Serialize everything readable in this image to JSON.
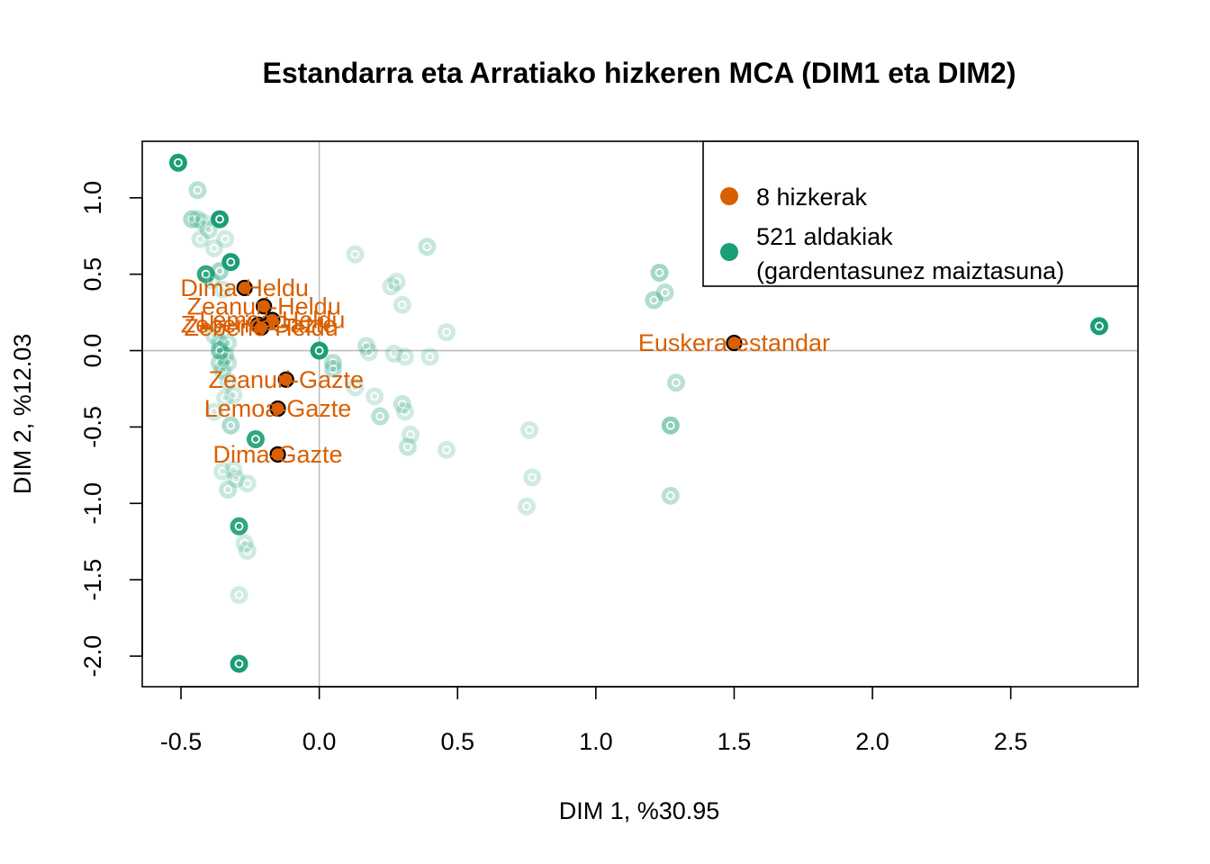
{
  "chart_data": {
    "type": "scatter",
    "title": "Estandarra eta Arratiako hizkeren MCA (DIM1 eta DIM2)",
    "xlabel": "DIM 1, %30.95",
    "ylabel": "DIM 2, %12.03",
    "xlim": [
      -0.64,
      2.96
    ],
    "ylim": [
      -2.2,
      1.37
    ],
    "xticks": [
      -0.5,
      0.0,
      0.5,
      1.0,
      1.5,
      2.0,
      2.5
    ],
    "xtick_labels": [
      "-0.5",
      "0.0",
      "0.5",
      "1.0",
      "1.5",
      "2.0",
      "2.5"
    ],
    "yticks": [
      -2.0,
      -1.5,
      -1.0,
      -0.5,
      0.0,
      0.5,
      1.0
    ],
    "ytick_labels": [
      "-2.0",
      "-1.5",
      "-1.0",
      "-0.5",
      "0.0",
      "0.5",
      "1.0"
    ],
    "reference_lines": {
      "x": 0,
      "y": 0
    },
    "grid": false,
    "legend": {
      "position": "top-right",
      "entries": [
        {
          "label": "8 hizkerak",
          "color": "#D95F02"
        },
        {
          "label": "521 aldakiak",
          "sublabel": "(gardentasunez maiztasuna)",
          "color": "#1B9E77"
        }
      ]
    },
    "series": [
      {
        "name": "8 hizkerak",
        "color": "#D95F02",
        "points": [
          {
            "label": "Dima-Heldu",
            "x": -0.27,
            "y": 0.41
          },
          {
            "label": "Zeanuri-Heldu",
            "x": -0.2,
            "y": 0.29
          },
          {
            "label": "Lemoa-Heldu",
            "x": -0.17,
            "y": 0.2
          },
          {
            "label": "Zeberio-Gazte",
            "x": -0.22,
            "y": 0.17
          },
          {
            "label": "Zeberio-Heldu",
            "x": -0.21,
            "y": 0.15
          },
          {
            "label": "Euskera-estandar",
            "x": 1.5,
            "y": 0.05
          },
          {
            "label": "Zeanuri-Gazte",
            "x": -0.12,
            "y": -0.19
          },
          {
            "label": "Lemoa-Gazte",
            "x": -0.15,
            "y": -0.38
          },
          {
            "label": "Dima-Gazte",
            "x": -0.15,
            "y": -0.68
          }
        ]
      },
      {
        "name": "521 aldakiak",
        "color": "#1B9E77",
        "points": [
          {
            "x": -0.51,
            "y": 1.23,
            "alpha": 1.0
          },
          {
            "x": -0.44,
            "y": 1.05,
            "alpha": 0.3
          },
          {
            "x": -0.46,
            "y": 0.86,
            "alpha": 0.35
          },
          {
            "x": -0.44,
            "y": 0.86,
            "alpha": 0.25
          },
          {
            "x": -0.42,
            "y": 0.84,
            "alpha": 0.2
          },
          {
            "x": -0.36,
            "y": 0.86,
            "alpha": 1.0
          },
          {
            "x": -0.4,
            "y": 0.79,
            "alpha": 0.25
          },
          {
            "x": -0.43,
            "y": 0.73,
            "alpha": 0.2
          },
          {
            "x": -0.34,
            "y": 0.73,
            "alpha": 0.2
          },
          {
            "x": -0.38,
            "y": 0.67,
            "alpha": 0.2
          },
          {
            "x": -0.32,
            "y": 0.58,
            "alpha": 1.0
          },
          {
            "x": -0.41,
            "y": 0.5,
            "alpha": 0.9
          },
          {
            "x": -0.36,
            "y": 0.52,
            "alpha": 0.4
          },
          {
            "x": -0.39,
            "y": 0.46,
            "alpha": 0.2
          },
          {
            "x": -0.35,
            "y": 0.4,
            "alpha": 0.2
          },
          {
            "x": -0.38,
            "y": 0.1,
            "alpha": 0.25
          },
          {
            "x": -0.36,
            "y": 0.05,
            "alpha": 0.3
          },
          {
            "x": -0.33,
            "y": 0.05,
            "alpha": 0.25
          },
          {
            "x": -0.36,
            "y": 0.0,
            "alpha": 0.5
          },
          {
            "x": -0.34,
            "y": -0.03,
            "alpha": 0.3
          },
          {
            "x": -0.36,
            "y": -0.08,
            "alpha": 0.3
          },
          {
            "x": -0.33,
            "y": -0.08,
            "alpha": 0.25
          },
          {
            "x": -0.35,
            "y": -0.13,
            "alpha": 0.25
          },
          {
            "x": -0.33,
            "y": -0.2,
            "alpha": 0.2
          },
          {
            "x": -0.34,
            "y": -0.31,
            "alpha": 0.2
          },
          {
            "x": -0.31,
            "y": -0.29,
            "alpha": 0.2
          },
          {
            "x": -0.38,
            "y": -0.4,
            "alpha": 0.2
          },
          {
            "x": -0.32,
            "y": -0.49,
            "alpha": 0.35
          },
          {
            "x": -0.23,
            "y": -0.58,
            "alpha": 0.9
          },
          {
            "x": -0.35,
            "y": -0.79,
            "alpha": 0.2
          },
          {
            "x": -0.31,
            "y": -0.78,
            "alpha": 0.2
          },
          {
            "x": -0.3,
            "y": -0.84,
            "alpha": 0.2
          },
          {
            "x": -0.26,
            "y": -0.87,
            "alpha": 0.2
          },
          {
            "x": -0.33,
            "y": -0.91,
            "alpha": 0.25
          },
          {
            "x": -0.29,
            "y": -1.15,
            "alpha": 0.9
          },
          {
            "x": -0.27,
            "y": -1.26,
            "alpha": 0.2
          },
          {
            "x": -0.26,
            "y": -1.31,
            "alpha": 0.2
          },
          {
            "x": -0.29,
            "y": -1.6,
            "alpha": 0.2
          },
          {
            "x": -0.29,
            "y": -2.05,
            "alpha": 1.0
          },
          {
            "x": 0.0,
            "y": 0.0,
            "alpha": 1.0
          },
          {
            "x": 0.05,
            "y": -0.08,
            "alpha": 0.3
          },
          {
            "x": 0.05,
            "y": -0.12,
            "alpha": 0.3
          },
          {
            "x": 0.13,
            "y": 0.63,
            "alpha": 0.2
          },
          {
            "x": 0.17,
            "y": 0.03,
            "alpha": 0.25
          },
          {
            "x": 0.18,
            "y": -0.01,
            "alpha": 0.2
          },
          {
            "x": 0.13,
            "y": -0.24,
            "alpha": 0.2
          },
          {
            "x": 0.2,
            "y": -0.3,
            "alpha": 0.2
          },
          {
            "x": 0.22,
            "y": -0.43,
            "alpha": 0.3
          },
          {
            "x": 0.26,
            "y": 0.42,
            "alpha": 0.2
          },
          {
            "x": 0.28,
            "y": 0.45,
            "alpha": 0.2
          },
          {
            "x": 0.3,
            "y": 0.3,
            "alpha": 0.2
          },
          {
            "x": 0.27,
            "y": -0.02,
            "alpha": 0.2
          },
          {
            "x": 0.31,
            "y": -0.04,
            "alpha": 0.2
          },
          {
            "x": 0.3,
            "y": -0.35,
            "alpha": 0.25
          },
          {
            "x": 0.31,
            "y": -0.4,
            "alpha": 0.2
          },
          {
            "x": 0.33,
            "y": -0.55,
            "alpha": 0.2
          },
          {
            "x": 0.32,
            "y": -0.63,
            "alpha": 0.25
          },
          {
            "x": 0.39,
            "y": 0.68,
            "alpha": 0.25
          },
          {
            "x": 0.4,
            "y": -0.04,
            "alpha": 0.2
          },
          {
            "x": 0.46,
            "y": 0.12,
            "alpha": 0.2
          },
          {
            "x": 0.46,
            "y": -0.65,
            "alpha": 0.2
          },
          {
            "x": 0.76,
            "y": -0.52,
            "alpha": 0.2
          },
          {
            "x": 0.77,
            "y": -0.83,
            "alpha": 0.2
          },
          {
            "x": 0.75,
            "y": -1.02,
            "alpha": 0.2
          },
          {
            "x": 1.23,
            "y": 0.51,
            "alpha": 0.4
          },
          {
            "x": 1.25,
            "y": 0.38,
            "alpha": 0.3
          },
          {
            "x": 1.21,
            "y": 0.33,
            "alpha": 0.35
          },
          {
            "x": 1.29,
            "y": -0.21,
            "alpha": 0.3
          },
          {
            "x": 1.27,
            "y": -0.49,
            "alpha": 0.5
          },
          {
            "x": 1.27,
            "y": -0.95,
            "alpha": 0.3
          },
          {
            "x": 2.82,
            "y": 0.16,
            "alpha": 1.0
          }
        ]
      }
    ]
  }
}
